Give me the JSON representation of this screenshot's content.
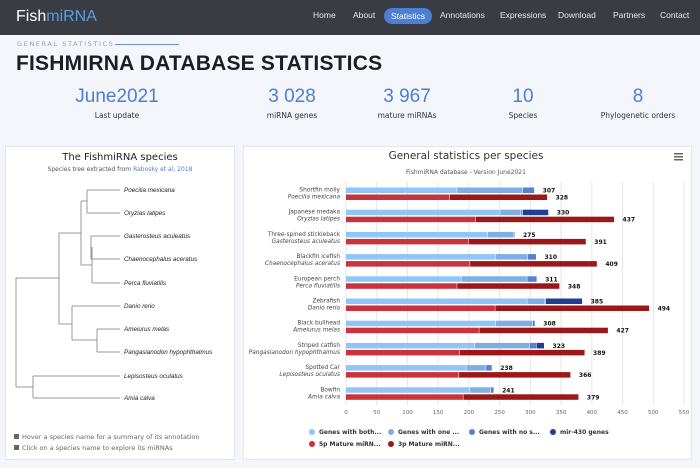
{
  "nav": {
    "logo_a": "Fish",
    "logo_b": "miRNA",
    "items": [
      "Home",
      "About",
      "Statistics",
      "Annotations",
      "Expressions",
      "Download",
      "Partners",
      "Contact"
    ],
    "active": "Statistics"
  },
  "header": {
    "kicker": "GENERAL STATISTICS",
    "title": "FISHMIRNA DATABASE STATISTICS"
  },
  "stats": [
    {
      "value": "June2021",
      "label": "Last update"
    },
    {
      "value": "3 028",
      "label": "miRNA genes"
    },
    {
      "value": "3 967",
      "label": "mature miRNAs"
    },
    {
      "value": "10",
      "label": "Species"
    },
    {
      "value": "8",
      "label": "Phylogenetic orders"
    }
  ],
  "tree": {
    "title": "The FishmiRNA species",
    "subtitle": "Species tree extracted from ",
    "link": "Rabosky et al, 2018",
    "leaves": [
      "Poecilia mexicana",
      "Oryzias latipes",
      "Gasterosteus aculeatus",
      "Chaenocephalus aceratus",
      "Perca fluviatilis",
      "Danio rerio",
      "Ameiurus melas",
      "Pangasianodon hypophthalmus",
      "Lepisosteus oculatus",
      "Amia calva"
    ],
    "hints": [
      "Hover a species name for a summary of its annotation",
      "Click on a species name to explore its miRNAs"
    ]
  },
  "chart_data": {
    "type": "bar",
    "orientation": "horizontal",
    "stacked": true,
    "title": "General statistics per species",
    "subtitle": "FishmiRNA database - Version June2021",
    "categories": [
      [
        "Shortfin molly",
        "Poecilia mexicana"
      ],
      [
        "Japanese medaka",
        "Oryzias latipes"
      ],
      [
        "Three-spined stickleback",
        "Gasterosteus aculeatus"
      ],
      [
        "Blackfin icefish",
        "Chaenocephalus aceratus"
      ],
      [
        "European perch",
        "Perca fluviatilis"
      ],
      [
        "Zebrafish",
        "Danio rerio"
      ],
      [
        "Black bullhead",
        "Ameiurus melas"
      ],
      [
        "Striped catfish",
        "Pangasianodon hypophthalmus"
      ],
      [
        "Spotted Car",
        "Lepisosteus oculatus"
      ],
      [
        "Bowfin",
        "Amia calva"
      ]
    ],
    "xlim": [
      0,
      550
    ],
    "xticks": [
      0,
      50,
      100,
      150,
      200,
      250,
      300,
      350,
      400,
      450,
      500,
      550
    ],
    "stacks": [
      {
        "name": "genes",
        "totals": [
          307,
          330,
          275,
          310,
          311,
          385,
          308,
          323,
          238,
          241
        ],
        "series": [
          {
            "name": "Genes with both...",
            "color": "#92c5f7",
            "values": [
              181,
              251,
              231,
              244,
              188,
              295,
              244,
              210,
              196,
              202
            ]
          },
          {
            "name": "Genes with one ...",
            "color": "#7eaee4",
            "values": [
              107,
              34,
              42,
              52,
              107,
              29,
              60,
              89,
              32,
              34
            ]
          },
          {
            "name": "Genes with no s...",
            "color": "#5680d6",
            "values": [
              19,
              3,
              2,
              14,
              16,
              1,
              4,
              11,
              10,
              5
            ]
          },
          {
            "name": "mir-430 genes",
            "color": "#1f3f95",
            "values": [
              0,
              42,
              0,
              0,
              0,
              60,
              0,
              13,
              0,
              0
            ]
          }
        ]
      },
      {
        "name": "mature",
        "totals": [
          328,
          437,
          391,
          409,
          348,
          494,
          427,
          389,
          366,
          379
        ],
        "series": [
          {
            "name": "5p Mature miRN...",
            "color": "#c9333b",
            "values": [
              169,
              211,
              200,
              202,
              181,
              243,
              217,
              185,
              184,
              191
            ]
          },
          {
            "name": "3p Mature miRN...",
            "color": "#9c1717",
            "values": [
              159,
              226,
              191,
              207,
              167,
              251,
              210,
              204,
              182,
              188
            ]
          }
        ]
      }
    ]
  }
}
